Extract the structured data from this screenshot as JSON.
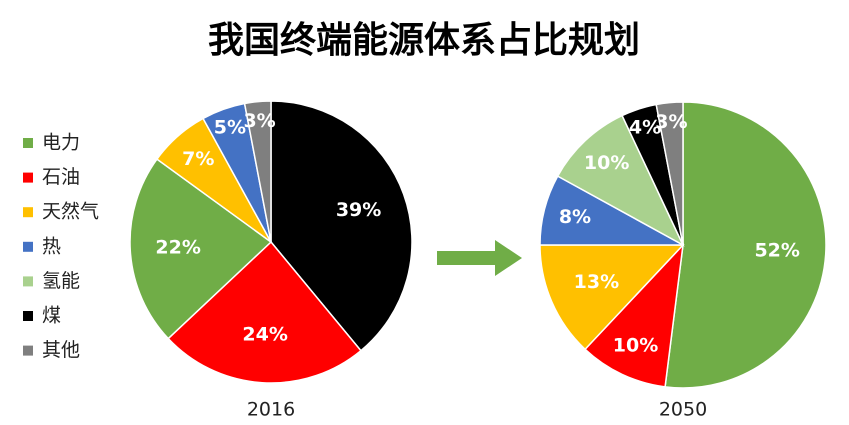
{
  "title": "我国终端能源体系占比规划",
  "chart_data": [
    {
      "type": "pie",
      "xlabel": "2016",
      "categories": [
        "煤",
        "石油",
        "电力",
        "天然气",
        "热",
        "其他"
      ],
      "colors": [
        "#000000",
        "#ff0000",
        "#70ad47",
        "#ffc000",
        "#4472c4",
        "#7f7f7f"
      ],
      "values": [
        39,
        24,
        22,
        7,
        5,
        3
      ],
      "value_labels": [
        "39%",
        "24%",
        "22%",
        "7%",
        "5%",
        "3%"
      ]
    },
    {
      "type": "pie",
      "xlabel": "2050",
      "categories": [
        "电力",
        "石油",
        "天然气",
        "热",
        "氢能",
        "煤",
        "其他"
      ],
      "colors": [
        "#70ad47",
        "#ff0000",
        "#ffc000",
        "#4472c4",
        "#a9d18e",
        "#000000",
        "#7f7f7f"
      ],
      "values": [
        52,
        10,
        13,
        8,
        10,
        4,
        3
      ],
      "value_labels": [
        "52%",
        "10%",
        "13%",
        "8%",
        "10%",
        "4%",
        "3%"
      ]
    }
  ]
}
